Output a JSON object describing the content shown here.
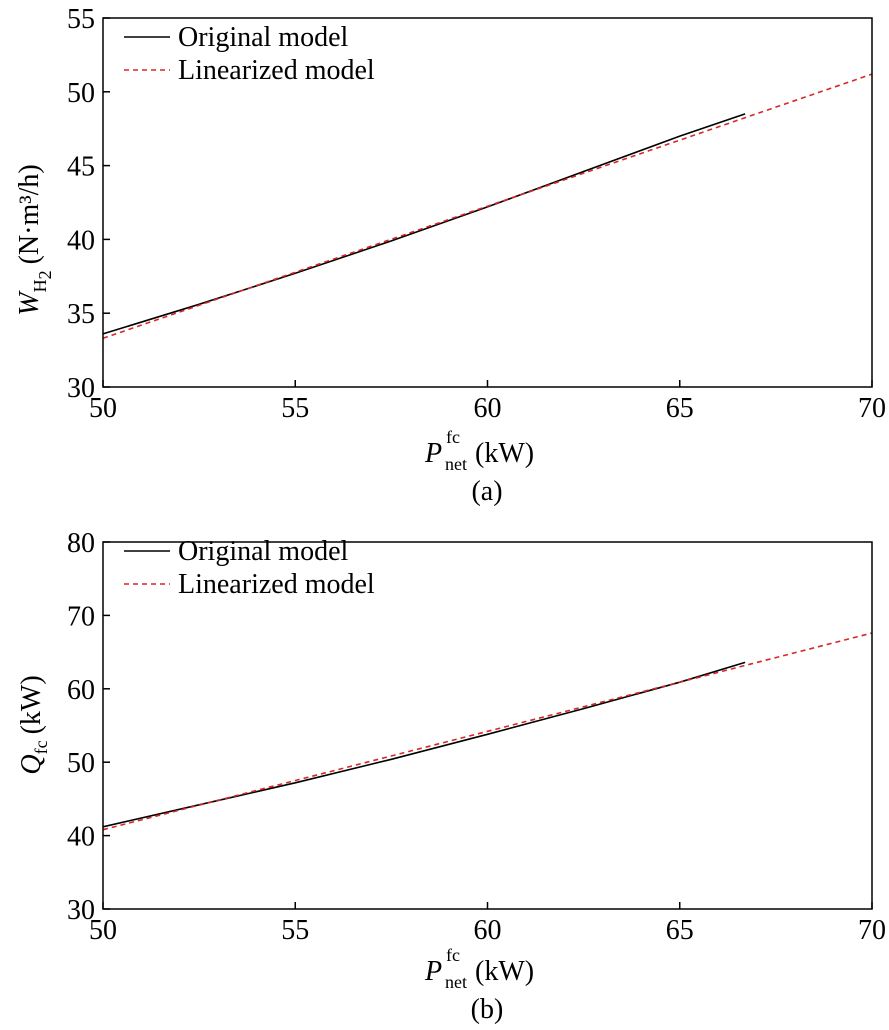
{
  "chart_data": [
    {
      "type": "line",
      "panel_label": "(a)",
      "ylabel": {
        "symbol": "W",
        "subscript": "H",
        "subsubscript": "2",
        "unit": "(N·m³/h)"
      },
      "xlabel": {
        "symbol": "P",
        "subscript": "net",
        "superscript": "fc",
        "unit": "(kW)"
      },
      "xlim": [
        50,
        70
      ],
      "ylim": [
        30,
        55
      ],
      "xticks": [
        50,
        55,
        60,
        65,
        70
      ],
      "yticks": [
        30,
        35,
        40,
        45,
        50,
        55
      ],
      "grid": false,
      "legend_position": "top-left",
      "series": [
        {
          "name": "Original model",
          "color": "#000000",
          "dash": "solid",
          "x": [
            50,
            52.5,
            55,
            57.5,
            60,
            62.5,
            65,
            66.7
          ],
          "y": [
            33.6,
            35.6,
            37.7,
            39.9,
            42.2,
            44.6,
            47.0,
            48.5
          ]
        },
        {
          "name": "Linearized model",
          "color": "#d62728",
          "dash": "dashed",
          "x": [
            50,
            70
          ],
          "y": [
            33.3,
            51.2
          ]
        }
      ]
    },
    {
      "type": "line",
      "panel_label": "(b)",
      "ylabel": {
        "symbol": "Q",
        "subscript": "fc",
        "unit": "(kW)"
      },
      "xlabel": {
        "symbol": "P",
        "subscript": "net",
        "superscript": "fc",
        "unit": "(kW)"
      },
      "xlim": [
        50,
        70
      ],
      "ylim": [
        30,
        80
      ],
      "xticks": [
        50,
        55,
        60,
        65,
        70
      ],
      "yticks": [
        30,
        40,
        50,
        60,
        70,
        80
      ],
      "grid": false,
      "legend_position": "top-left",
      "series": [
        {
          "name": "Original model",
          "color": "#000000",
          "dash": "solid",
          "x": [
            50,
            52.5,
            55,
            57.5,
            60,
            62.5,
            65,
            66.7
          ],
          "y": [
            41.2,
            44.2,
            47.2,
            50.4,
            53.8,
            57.3,
            60.9,
            63.6
          ]
        },
        {
          "name": "Linearized model",
          "color": "#d62728",
          "dash": "dashed",
          "x": [
            50,
            70
          ],
          "y": [
            40.8,
            67.6
          ]
        }
      ]
    }
  ]
}
